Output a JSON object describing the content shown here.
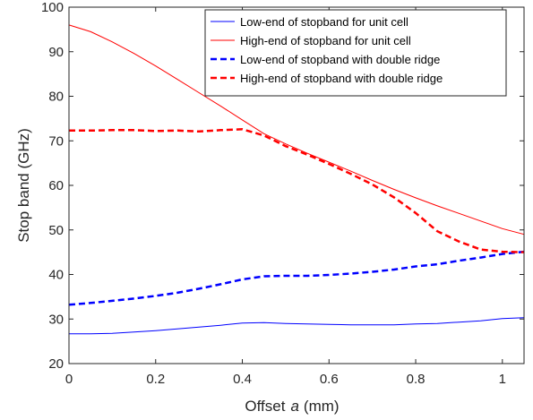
{
  "chart_data": {
    "type": "line",
    "title": "",
    "xlabel": "Offset a (mm)",
    "xlabel_prefix": "Offset",
    "xlabel_var": "a",
    "xlabel_unit": "(mm)",
    "ylabel": "Stop band (GHz)",
    "xlim": [
      0,
      1.05
    ],
    "ylim": [
      20,
      100
    ],
    "xticks": [
      0,
      0.2,
      0.4,
      0.6,
      0.8,
      1
    ],
    "xtick_labels": [
      "0",
      "0.2",
      "0.4",
      "0.6",
      "0.8",
      "1"
    ],
    "yticks": [
      20,
      30,
      40,
      50,
      60,
      70,
      80,
      90,
      100
    ],
    "ytick_labels": [
      "20",
      "30",
      "40",
      "50",
      "60",
      "70",
      "80",
      "90",
      "100"
    ],
    "grid": false,
    "legend_position": "top-right",
    "series": [
      {
        "name": "Low-end of stopband for unit cell",
        "color": "#0000ff",
        "style": "solid",
        "x": [
          0,
          0.05,
          0.1,
          0.15,
          0.2,
          0.25,
          0.3,
          0.35,
          0.4,
          0.45,
          0.5,
          0.55,
          0.6,
          0.65,
          0.7,
          0.75,
          0.8,
          0.85,
          0.9,
          0.95,
          1.0,
          1.05
        ],
        "y": [
          26.7,
          26.7,
          26.8,
          27.1,
          27.4,
          27.8,
          28.2,
          28.6,
          29.1,
          29.2,
          29.0,
          28.9,
          28.8,
          28.7,
          28.7,
          28.7,
          28.9,
          29.0,
          29.3,
          29.6,
          30.1,
          30.3
        ]
      },
      {
        "name": "High-end of stopband for unit cell",
        "color": "#ff0000",
        "style": "solid",
        "x": [
          0,
          0.05,
          0.1,
          0.15,
          0.2,
          0.25,
          0.3,
          0.35,
          0.4,
          0.45,
          0.5,
          0.55,
          0.6,
          0.65,
          0.7,
          0.75,
          0.8,
          0.85,
          0.9,
          0.95,
          1.0,
          1.05
        ],
        "y": [
          96.0,
          94.5,
          92.2,
          89.6,
          86.8,
          83.8,
          80.8,
          77.8,
          74.7,
          71.6,
          69.3,
          67.2,
          65.2,
          63.2,
          61.1,
          59.1,
          57.2,
          55.4,
          53.7,
          52.0,
          50.3,
          49.0
        ]
      },
      {
        "name": "Low-end of stopband with double ridge",
        "color": "#0000ff",
        "style": "dashed",
        "x": [
          0,
          0.05,
          0.1,
          0.15,
          0.2,
          0.25,
          0.3,
          0.35,
          0.4,
          0.45,
          0.5,
          0.55,
          0.6,
          0.65,
          0.7,
          0.75,
          0.8,
          0.85,
          0.9,
          0.95,
          1.0,
          1.05
        ],
        "y": [
          33.2,
          33.6,
          34.1,
          34.6,
          35.2,
          35.9,
          36.8,
          37.8,
          38.9,
          39.6,
          39.7,
          39.7,
          39.9,
          40.2,
          40.6,
          41.1,
          41.8,
          42.3,
          43.1,
          43.8,
          44.6,
          45.1
        ]
      },
      {
        "name": "High-end of stopband with double ridge",
        "color": "#ff0000",
        "style": "dashed",
        "x": [
          0,
          0.05,
          0.1,
          0.15,
          0.2,
          0.25,
          0.3,
          0.35,
          0.4,
          0.45,
          0.5,
          0.55,
          0.6,
          0.65,
          0.7,
          0.75,
          0.8,
          0.85,
          0.9,
          0.95,
          1.0,
          1.05
        ],
        "y": [
          72.3,
          72.3,
          72.4,
          72.4,
          72.2,
          72.3,
          72.1,
          72.4,
          72.6,
          71.2,
          68.8,
          66.9,
          64.8,
          62.6,
          60.2,
          57.3,
          53.8,
          49.7,
          47.4,
          45.6,
          45.1,
          45.0
        ]
      }
    ]
  }
}
